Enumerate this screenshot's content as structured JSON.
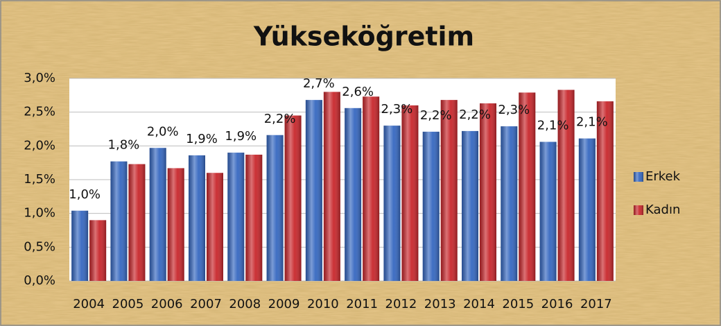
{
  "chart_data": {
    "type": "bar",
    "title": "Yükseköğretim",
    "categories": [
      "2004",
      "2005",
      "2006",
      "2007",
      "2008",
      "2009",
      "2010",
      "2011",
      "2012",
      "2013",
      "2014",
      "2015",
      "2016",
      "2017"
    ],
    "series": [
      {
        "name": "Erkek",
        "color": "#3567c0",
        "values": [
          1.04,
          1.77,
          1.97,
          1.86,
          1.9,
          2.16,
          2.68,
          2.56,
          2.3,
          2.21,
          2.22,
          2.29,
          2.06,
          2.11
        ],
        "value_labels": [
          "1,0%",
          "1,8%",
          "2,0%",
          "1,9%",
          "1,9%",
          "2,2%",
          "2,7%",
          "2,6%",
          "2,3%",
          "2,2%",
          "2,2%",
          "2,3%",
          "2,1%",
          "2,1%"
        ]
      },
      {
        "name": "Kadın",
        "color": "#c8262b",
        "values": [
          0.9,
          1.73,
          1.67,
          1.6,
          1.87,
          2.45,
          2.8,
          2.73,
          2.6,
          2.68,
          2.63,
          2.79,
          2.83,
          2.66
        ]
      }
    ],
    "ylim": [
      0,
      3
    ],
    "yticks": [
      {
        "value": 0,
        "label": "0,0%"
      },
      {
        "value": 0.5,
        "label": "0,5%"
      },
      {
        "value": 1,
        "label": "1,0%"
      },
      {
        "value": 1.5,
        "label": "1,5%"
      },
      {
        "value": 2,
        "label": "2,0%"
      },
      {
        "value": 2.5,
        "label": "2,5%"
      },
      {
        "value": 3,
        "label": "3,0%"
      }
    ],
    "grid": true,
    "legend": "right"
  }
}
